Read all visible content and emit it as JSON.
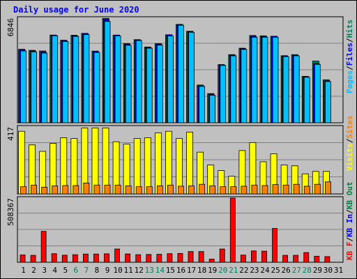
{
  "title": "Daily usage for June 2020",
  "colors": {
    "hits": "#00805c",
    "files": "#0000ff",
    "pages": "#00c0ff",
    "visits": "#ffff00",
    "sites": "#ff8000",
    "kbin": "#0000ff",
    "kbout": "#008040",
    "kbf": "#ff0000",
    "weekend_day": "#00805c",
    "weekday": "#000000"
  },
  "chart_data": [
    {
      "type": "bar",
      "ymax_label": "6846",
      "legend": [
        {
          "name": "Pages",
          "color": "#00c0ff"
        },
        {
          "name": "Files",
          "color": "#0000ff"
        },
        {
          "name": "Hits",
          "color": "#00805c"
        }
      ],
      "ymax": 6846,
      "x": [
        1,
        2,
        3,
        4,
        5,
        6,
        7,
        8,
        9,
        10,
        11,
        12,
        13,
        14,
        15,
        16,
        17,
        18,
        19,
        20,
        21,
        22,
        23,
        24,
        25,
        26,
        27,
        28,
        29,
        30,
        31
      ],
      "series": [
        {
          "name": "Hits",
          "values": [
            4810,
            4740,
            4700,
            5740,
            5400,
            5730,
            5850,
            4690,
            6830,
            5730,
            5180,
            5440,
            4960,
            5180,
            5750,
            6430,
            5990,
            2470,
            1910,
            3810,
            4460,
            4880,
            5710,
            5690,
            5660,
            4390,
            4460,
            3040,
            4040,
            2810,
            null
          ]
        },
        {
          "name": "Files",
          "values": [
            4760,
            4700,
            4640,
            5730,
            5370,
            5690,
            5840,
            4660,
            6770,
            5740,
            5140,
            5420,
            4910,
            5130,
            5760,
            6440,
            5970,
            2420,
            1870,
            3770,
            4420,
            4840,
            5660,
            5640,
            5660,
            4370,
            4410,
            3000,
            3880,
            2740,
            null
          ]
        },
        {
          "name": "Pages",
          "values": [
            4700,
            4640,
            4560,
            5690,
            5320,
            5650,
            5770,
            4600,
            6630,
            5680,
            5070,
            5380,
            4880,
            5080,
            5680,
            6380,
            5920,
            2380,
            1800,
            3750,
            4380,
            4800,
            5600,
            5600,
            5600,
            4330,
            4380,
            2980,
            3820,
            2700,
            null
          ]
        }
      ]
    },
    {
      "type": "bar",
      "ymax_label": "417",
      "legend": [
        {
          "name": "Visits",
          "color": "#ffff00"
        },
        {
          "name": "Sites",
          "color": "#ff8000"
        }
      ],
      "ymax": 417,
      "x": [
        1,
        2,
        3,
        4,
        5,
        6,
        7,
        8,
        9,
        10,
        11,
        12,
        13,
        14,
        15,
        16,
        17,
        18,
        19,
        20,
        21,
        22,
        23,
        24,
        25,
        26,
        27,
        28,
        29,
        30,
        31
      ],
      "series": [
        {
          "name": "Visits",
          "values": [
            390,
            305,
            265,
            315,
            350,
            345,
            410,
            410,
            410,
            325,
            310,
            345,
            350,
            380,
            390,
            345,
            385,
            260,
            180,
            145,
            110,
            270,
            320,
            200,
            250,
            180,
            175,
            125,
            140,
            140,
            null
          ]
        },
        {
          "name": "Sites",
          "values": [
            45,
            55,
            42,
            50,
            52,
            52,
            68,
            55,
            55,
            55,
            50,
            45,
            45,
            50,
            55,
            48,
            50,
            60,
            50,
            45,
            45,
            48,
            55,
            52,
            58,
            55,
            60,
            48,
            60,
            75,
            null
          ]
        }
      ]
    },
    {
      "type": "bar",
      "ymax_label": "508367",
      "legend": [
        {
          "name": "KB F",
          "color": "#ff0000"
        },
        {
          "name": "KB In",
          "color": "#0000ff"
        },
        {
          "name": "KB Out",
          "color": "#008040"
        }
      ],
      "ymax": 508367,
      "x": [
        1,
        2,
        3,
        4,
        5,
        6,
        7,
        8,
        9,
        10,
        11,
        12,
        13,
        14,
        15,
        16,
        17,
        18,
        19,
        20,
        21,
        22,
        23,
        24,
        25,
        26,
        27,
        28,
        29,
        30,
        31
      ],
      "series": [
        {
          "name": "KB F",
          "values": [
            58000,
            55000,
            245000,
            68000,
            56000,
            60000,
            65000,
            65000,
            67000,
            105000,
            66000,
            60000,
            62000,
            63000,
            68000,
            70000,
            85000,
            85000,
            25000,
            105000,
            508367,
            57000,
            90000,
            88000,
            268000,
            55000,
            55000,
            77000,
            48000,
            45000,
            null
          ]
        }
      ]
    }
  ],
  "x_labels": [
    "1",
    "2",
    "3",
    "4",
    "5",
    "6",
    "7",
    "8",
    "9",
    "10",
    "11",
    "12",
    "13",
    "14",
    "15",
    "16",
    "17",
    "18",
    "19",
    "20",
    "21",
    "22",
    "23",
    "24",
    "25",
    "26",
    "27",
    "28",
    "29",
    "30",
    "31"
  ],
  "weekend_days": [
    6,
    7,
    13,
    14,
    20,
    21,
    27,
    28
  ]
}
